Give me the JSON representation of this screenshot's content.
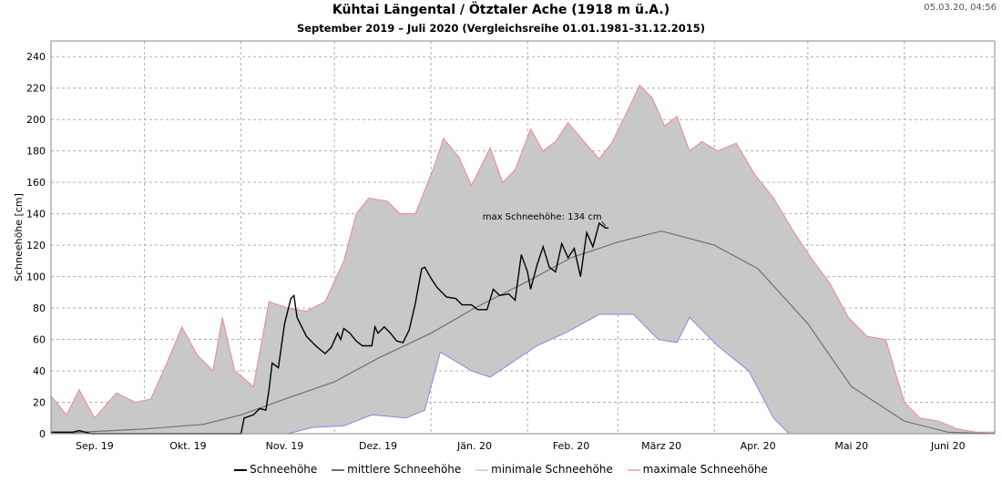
{
  "header": {
    "title": "Kühtai Längental / Ötztaler Ache (1918 m ü.A.)",
    "subtitle": "September 2019 – Juli 2020 (Vergleichsreihe 01.01.1981–31.12.2015)",
    "timestamp": "05.03.20, 04:56"
  },
  "colors": {
    "schneehoehe": "#000000",
    "mittlere": "#707070",
    "minimale": "#8b86e0",
    "maximale": "#ef8888",
    "band_fill": "#c8c8c8",
    "grid": "#b0b0b0"
  },
  "chart_data": {
    "type": "area",
    "title": "Kühtai Längental / Ötztaler Ache (1918 m ü.A.)",
    "subtitle": "September 2019 – Juli 2020 (Vergleichsreihe 01.01.1981–31.12.2015)",
    "ylabel": "Schneehöhe [cm]",
    "xlabel": "",
    "ylim": [
      0,
      250
    ],
    "yticks": [
      0,
      20,
      40,
      60,
      80,
      100,
      120,
      140,
      160,
      180,
      200,
      220,
      240
    ],
    "xlim": [
      "2019-09-01",
      "2020-06-30"
    ],
    "xtick_labels": [
      "Sep. 19",
      "Okt. 19",
      "Nov. 19",
      "Dez. 19",
      "Jän. 20",
      "Feb. 20",
      "März 20",
      "Apr. 20",
      "Mai 20",
      "Juni 20"
    ],
    "xtick_dates": [
      "2019-09-15",
      "2019-10-15",
      "2019-11-15",
      "2019-12-15",
      "2020-01-15",
      "2020-02-15",
      "2020-03-15",
      "2020-04-15",
      "2020-05-15",
      "2020-06-15"
    ],
    "grid": true,
    "legend_position": "bottom",
    "annotation": {
      "text": "max Schneehöhe: 134 cm",
      "date": "2020-02-26",
      "value": 134
    },
    "series": [
      {
        "name": "Schneehöhe",
        "points": [
          [
            "2019-09-01",
            1
          ],
          [
            "2019-09-08",
            1
          ],
          [
            "2019-09-10",
            2
          ],
          [
            "2019-09-14",
            0
          ],
          [
            "2019-10-31",
            0
          ],
          [
            "2019-11-01",
            0
          ],
          [
            "2019-11-02",
            10
          ],
          [
            "2019-11-05",
            12
          ],
          [
            "2019-11-07",
            16
          ],
          [
            "2019-11-09",
            15
          ],
          [
            "2019-11-10",
            28
          ],
          [
            "2019-11-11",
            45
          ],
          [
            "2019-11-13",
            42
          ],
          [
            "2019-11-15",
            70
          ],
          [
            "2019-11-17",
            86
          ],
          [
            "2019-11-18",
            88
          ],
          [
            "2019-11-19",
            74
          ],
          [
            "2019-11-22",
            62
          ],
          [
            "2019-11-25",
            56
          ],
          [
            "2019-11-28",
            51
          ],
          [
            "2019-11-30",
            55
          ],
          [
            "2019-12-02",
            64
          ],
          [
            "2019-12-03",
            60
          ],
          [
            "2019-12-04",
            67
          ],
          [
            "2019-12-06",
            64
          ],
          [
            "2019-12-08",
            59
          ],
          [
            "2019-12-10",
            56
          ],
          [
            "2019-12-13",
            56
          ],
          [
            "2019-12-14",
            68
          ],
          [
            "2019-12-15",
            64
          ],
          [
            "2019-12-17",
            68
          ],
          [
            "2019-12-19",
            64
          ],
          [
            "2019-12-21",
            59
          ],
          [
            "2019-12-23",
            58
          ],
          [
            "2019-12-25",
            66
          ],
          [
            "2019-12-27",
            83
          ],
          [
            "2019-12-29",
            105
          ],
          [
            "2019-12-30",
            106
          ],
          [
            "2020-01-01",
            99
          ],
          [
            "2020-01-03",
            93
          ],
          [
            "2020-01-06",
            87
          ],
          [
            "2020-01-09",
            86
          ],
          [
            "2020-01-11",
            82
          ],
          [
            "2020-01-14",
            82
          ],
          [
            "2020-01-16",
            79
          ],
          [
            "2020-01-19",
            79
          ],
          [
            "2020-01-21",
            92
          ],
          [
            "2020-01-23",
            88
          ],
          [
            "2020-01-26",
            89
          ],
          [
            "2020-01-28",
            85
          ],
          [
            "2020-01-30",
            114
          ],
          [
            "2020-02-01",
            103
          ],
          [
            "2020-02-02",
            92
          ],
          [
            "2020-02-04",
            107
          ],
          [
            "2020-02-06",
            119
          ],
          [
            "2020-02-08",
            106
          ],
          [
            "2020-02-10",
            103
          ],
          [
            "2020-02-12",
            121
          ],
          [
            "2020-02-14",
            112
          ],
          [
            "2020-02-16",
            118
          ],
          [
            "2020-02-18",
            100
          ],
          [
            "2020-02-20",
            128
          ],
          [
            "2020-02-22",
            119
          ],
          [
            "2020-02-24",
            134
          ],
          [
            "2020-02-26",
            131
          ],
          [
            "2020-02-27",
            131
          ]
        ]
      },
      {
        "name": "mittlere Schneehöhe",
        "points": [
          [
            "2019-09-01",
            0
          ],
          [
            "2019-10-01",
            3
          ],
          [
            "2019-10-20",
            6
          ],
          [
            "2019-11-01",
            12
          ],
          [
            "2019-11-15",
            22
          ],
          [
            "2019-12-01",
            33
          ],
          [
            "2019-12-15",
            48
          ],
          [
            "2020-01-01",
            64
          ],
          [
            "2020-01-15",
            80
          ],
          [
            "2020-02-01",
            97
          ],
          [
            "2020-02-15",
            112
          ],
          [
            "2020-03-01",
            122
          ],
          [
            "2020-03-15",
            129
          ],
          [
            "2020-04-01",
            120
          ],
          [
            "2020-04-15",
            105
          ],
          [
            "2020-05-01",
            70
          ],
          [
            "2020-05-15",
            30
          ],
          [
            "2020-06-01",
            8
          ],
          [
            "2020-06-15",
            1
          ],
          [
            "2020-06-30",
            0
          ]
        ]
      },
      {
        "name": "minimale Schneehöhe",
        "points": [
          [
            "2019-09-01",
            0
          ],
          [
            "2019-11-16",
            0
          ],
          [
            "2019-11-24",
            4
          ],
          [
            "2019-12-04",
            5
          ],
          [
            "2019-12-13",
            12
          ],
          [
            "2019-12-24",
            10
          ],
          [
            "2019-12-30",
            15
          ],
          [
            "2020-01-04",
            52
          ],
          [
            "2020-01-14",
            40
          ],
          [
            "2020-01-20",
            36
          ],
          [
            "2020-01-26",
            44
          ],
          [
            "2020-02-04",
            56
          ],
          [
            "2020-02-14",
            65
          ],
          [
            "2020-02-24",
            76
          ],
          [
            "2020-03-06",
            76
          ],
          [
            "2020-03-14",
            60
          ],
          [
            "2020-03-20",
            58
          ],
          [
            "2020-03-24",
            74
          ],
          [
            "2020-04-02",
            56
          ],
          [
            "2020-04-12",
            40
          ],
          [
            "2020-04-20",
            10
          ],
          [
            "2020-04-25",
            0
          ],
          [
            "2020-06-30",
            0
          ]
        ]
      },
      {
        "name": "maximale Schneehöhe",
        "points": [
          [
            "2019-09-01",
            24
          ],
          [
            "2019-09-06",
            12
          ],
          [
            "2019-09-10",
            28
          ],
          [
            "2019-09-15",
            10
          ],
          [
            "2019-09-22",
            26
          ],
          [
            "2019-09-28",
            20
          ],
          [
            "2019-10-03",
            22
          ],
          [
            "2019-10-08",
            44
          ],
          [
            "2019-10-13",
            68
          ],
          [
            "2019-10-18",
            50
          ],
          [
            "2019-10-23",
            40
          ],
          [
            "2019-10-26",
            74
          ],
          [
            "2019-10-30",
            40
          ],
          [
            "2019-11-05",
            30
          ],
          [
            "2019-11-10",
            84
          ],
          [
            "2019-11-16",
            80
          ],
          [
            "2019-11-22",
            78
          ],
          [
            "2019-11-28",
            84
          ],
          [
            "2019-12-04",
            110
          ],
          [
            "2019-12-08",
            140
          ],
          [
            "2019-12-12",
            150
          ],
          [
            "2019-12-18",
            148
          ],
          [
            "2019-12-22",
            140
          ],
          [
            "2019-12-27",
            140
          ],
          [
            "2020-01-02",
            170
          ],
          [
            "2020-01-05",
            188
          ],
          [
            "2020-01-10",
            176
          ],
          [
            "2020-01-14",
            158
          ],
          [
            "2020-01-20",
            182
          ],
          [
            "2020-01-24",
            160
          ],
          [
            "2020-01-28",
            168
          ],
          [
            "2020-02-02",
            194
          ],
          [
            "2020-02-06",
            180
          ],
          [
            "2020-02-10",
            186
          ],
          [
            "2020-02-14",
            198
          ],
          [
            "2020-02-20",
            184
          ],
          [
            "2020-02-24",
            175
          ],
          [
            "2020-02-28",
            185
          ],
          [
            "2020-03-04",
            205
          ],
          [
            "2020-03-08",
            222
          ],
          [
            "2020-03-12",
            214
          ],
          [
            "2020-03-16",
            196
          ],
          [
            "2020-03-20",
            202
          ],
          [
            "2020-03-24",
            180
          ],
          [
            "2020-03-28",
            186
          ],
          [
            "2020-04-02",
            180
          ],
          [
            "2020-04-08",
            185
          ],
          [
            "2020-04-14",
            165
          ],
          [
            "2020-04-20",
            150
          ],
          [
            "2020-04-26",
            130
          ],
          [
            "2020-05-02",
            112
          ],
          [
            "2020-05-08",
            96
          ],
          [
            "2020-05-14",
            74
          ],
          [
            "2020-05-20",
            62
          ],
          [
            "2020-05-26",
            60
          ],
          [
            "2020-06-01",
            20
          ],
          [
            "2020-06-06",
            10
          ],
          [
            "2020-06-12",
            8
          ],
          [
            "2020-06-18",
            3
          ],
          [
            "2020-06-24",
            1
          ],
          [
            "2020-06-30",
            1
          ]
        ]
      }
    ]
  },
  "legend": {
    "items": [
      "Schneehöhe",
      "mittlere Schneehöhe",
      "minimale Schneehöhe",
      "maximale Schneehöhe"
    ]
  }
}
